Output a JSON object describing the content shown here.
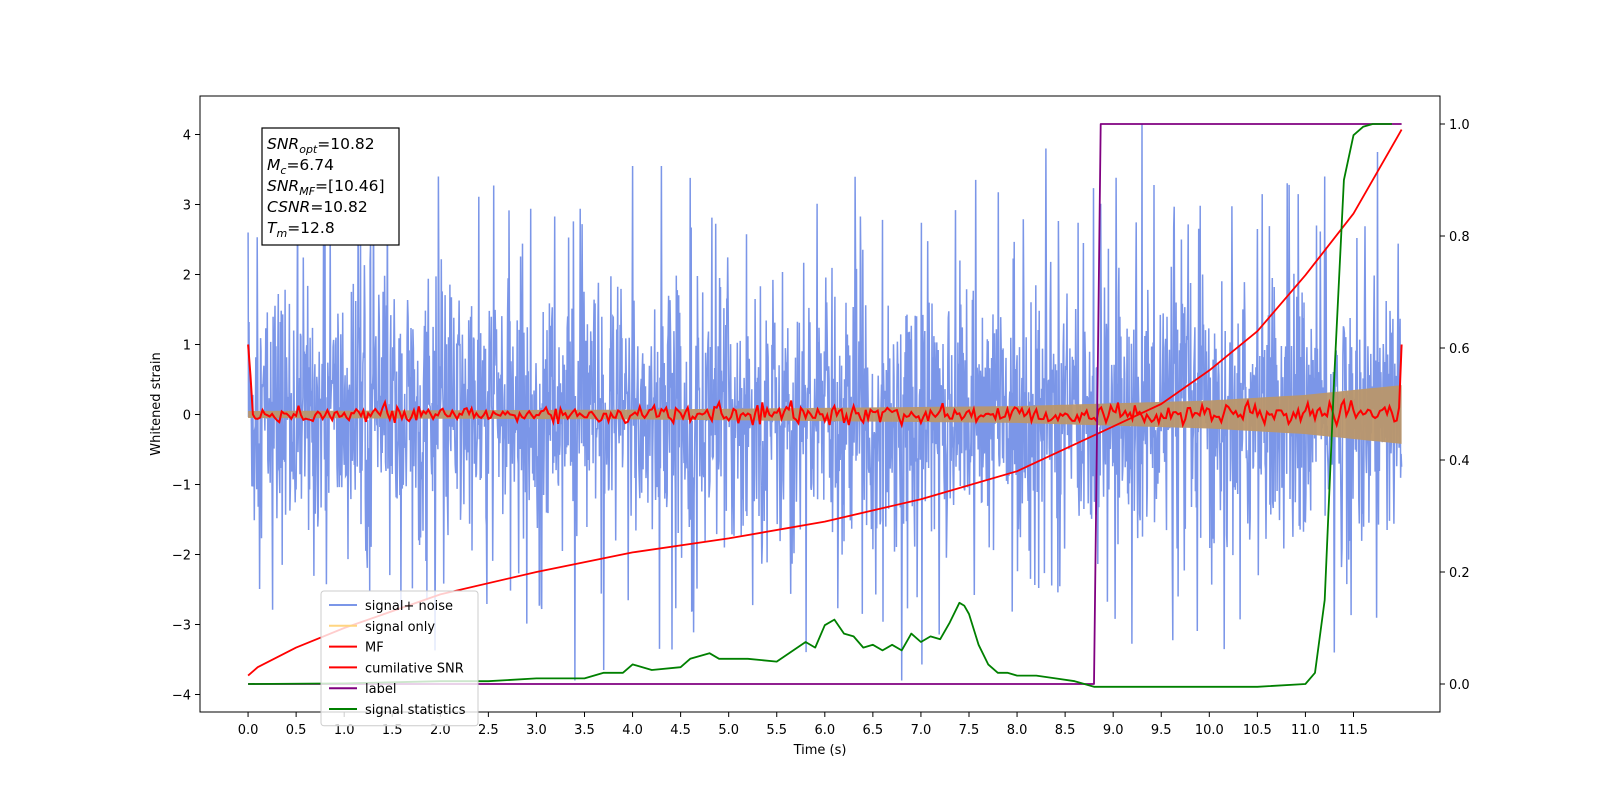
{
  "chart_data": {
    "type": "line",
    "xlabel": "Time (s)",
    "ylabel": "Whitened strain",
    "xlim": [
      -0.5,
      12.4
    ],
    "ylim": [
      -4.25,
      4.55
    ],
    "y2lim": [
      -0.05,
      1.05
    ],
    "grid": false,
    "legend_placement": "lower-left",
    "x_ticks": [
      "0.0",
      "0.5",
      "1.0",
      "1.5",
      "2.0",
      "2.5",
      "3.0",
      "3.5",
      "4.0",
      "4.5",
      "5.0",
      "5.5",
      "6.0",
      "6.5",
      "7.0",
      "7.5",
      "8.0",
      "8.5",
      "9.0",
      "9.5",
      "10.0",
      "10.5",
      "11.0",
      "11.5"
    ],
    "y_ticks": [
      "4",
      "3",
      "2",
      "1",
      "0",
      "−1",
      "−2",
      "−3",
      "−4"
    ],
    "y2_ticks": [
      "1.0",
      "0.8",
      "0.6",
      "0.4",
      "0.2",
      "0.0"
    ],
    "annotation": {
      "lines": [
        {
          "main": "SNR",
          "sub": "opt",
          "rest": "=10.82"
        },
        {
          "main": "M",
          "sub": "c",
          "rest": "=6.74"
        },
        {
          "main": "SNR",
          "sub": "MF",
          "rest": "=[10.46]"
        },
        {
          "main": "CSNR",
          "sub": "",
          "rest": "=10.82"
        },
        {
          "main": "T",
          "sub": "m",
          "rest": "=12.8"
        }
      ]
    },
    "series": [
      {
        "name": "signal+ noise",
        "axis": "left",
        "color": "#7b96e8",
        "kind": "noise",
        "x_range": [
          0.0,
          12.0
        ],
        "amplitude_range": [
          -3.8,
          4.2
        ],
        "note_values": [
          [
            0.0,
            2.6
          ],
          [
            1.98,
            3.4
          ],
          [
            4.0,
            3.55
          ],
          [
            4.3,
            3.55
          ],
          [
            8.3,
            3.8
          ],
          [
            9.3,
            4.15
          ],
          [
            11.2,
            3.4
          ],
          [
            11.75,
            3.75
          ],
          [
            6.8,
            -3.8
          ],
          [
            3.7,
            -3.65
          ],
          [
            11.3,
            -3.4
          ]
        ]
      },
      {
        "name": "signal only",
        "axis": "left",
        "color": "#ffd580",
        "kind": "chirp",
        "envelope": [
          [
            0.0,
            0.05
          ],
          [
            4.0,
            0.07
          ],
          [
            8.0,
            0.12
          ],
          [
            10.0,
            0.2
          ],
          [
            11.0,
            0.28
          ],
          [
            12.0,
            0.42
          ]
        ]
      },
      {
        "name": "MF",
        "axis": "left",
        "color": "#ff0000",
        "kind": "mf",
        "start_value": 1.0,
        "end_value": 1.0,
        "band": [
          -0.15,
          0.2
        ]
      },
      {
        "name": "cumilative SNR",
        "axis": "right",
        "color": "#ff0000",
        "x": [
          0.0,
          0.1,
          0.5,
          1.0,
          2.0,
          3.0,
          4.0,
          5.0,
          6.0,
          7.0,
          8.0,
          8.5,
          9.0,
          9.5,
          10.0,
          10.5,
          11.0,
          11.5,
          12.0
        ],
        "y": [
          0.015,
          0.03,
          0.065,
          0.1,
          0.16,
          0.2,
          0.235,
          0.26,
          0.29,
          0.33,
          0.38,
          0.42,
          0.46,
          0.5,
          0.56,
          0.63,
          0.73,
          0.84,
          0.99
        ]
      },
      {
        "name": "label",
        "axis": "right",
        "color": "#800080",
        "x": [
          0.0,
          8.8,
          8.87,
          12.0
        ],
        "y": [
          0.0,
          0.0,
          1.0,
          1.0
        ]
      },
      {
        "name": "signal statistics",
        "axis": "right",
        "color": "#008000",
        "x": [
          0.0,
          1.0,
          2.0,
          2.5,
          3.0,
          3.2,
          3.5,
          3.7,
          3.9,
          4.0,
          4.2,
          4.5,
          4.6,
          4.8,
          4.9,
          5.0,
          5.2,
          5.5,
          5.8,
          5.9,
          6.0,
          6.1,
          6.2,
          6.3,
          6.4,
          6.5,
          6.6,
          6.7,
          6.8,
          6.9,
          7.0,
          7.1,
          7.2,
          7.3,
          7.4,
          7.45,
          7.5,
          7.6,
          7.7,
          7.8,
          7.9,
          8.0,
          8.2,
          8.4,
          8.6,
          8.8,
          9.0,
          9.5,
          10.0,
          10.5,
          11.0,
          11.1,
          11.2,
          11.3,
          11.4,
          11.5,
          11.6,
          11.7,
          11.9
        ],
        "y": [
          0.0,
          0.001,
          0.005,
          0.005,
          0.01,
          0.01,
          0.01,
          0.02,
          0.02,
          0.035,
          0.025,
          0.03,
          0.045,
          0.055,
          0.045,
          0.045,
          0.045,
          0.04,
          0.075,
          0.065,
          0.105,
          0.115,
          0.09,
          0.085,
          0.065,
          0.07,
          0.06,
          0.07,
          0.06,
          0.09,
          0.075,
          0.085,
          0.08,
          0.11,
          0.145,
          0.14,
          0.125,
          0.07,
          0.035,
          0.02,
          0.02,
          0.015,
          0.015,
          0.01,
          0.005,
          -0.005,
          -0.005,
          -0.005,
          -0.005,
          -0.005,
          0.0,
          0.02,
          0.15,
          0.55,
          0.9,
          0.98,
          0.995,
          1.0,
          1.0
        ]
      }
    ]
  }
}
